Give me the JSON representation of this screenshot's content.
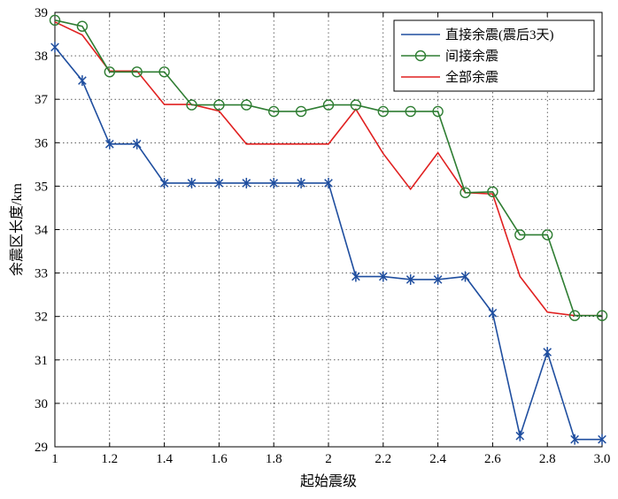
{
  "chart_data": {
    "type": "line",
    "title": "",
    "xlabel": "起始震级",
    "ylabel": "余震区长度/km",
    "xlim": [
      1,
      3.0
    ],
    "ylim": [
      29,
      39
    ],
    "grid": true,
    "legend_position": "top-right",
    "x_tick_labels": [
      "1",
      "1.2",
      "1.4",
      "1.6",
      "1.8",
      "2",
      "2.2",
      "2.4",
      "2.6",
      "2.8",
      "3.0"
    ],
    "y_tick_labels": [
      "29",
      "30",
      "31",
      "32",
      "33",
      "34",
      "35",
      "36",
      "37",
      "38",
      "39"
    ],
    "series": [
      {
        "name": "直接余震(震后3天)",
        "color": "#1f4e9f",
        "marker": "asterisk",
        "x": [
          1.0,
          1.1,
          1.2,
          1.3,
          1.4,
          1.5,
          1.6,
          1.7,
          1.8,
          1.9,
          2.0,
          2.1,
          2.2,
          2.3,
          2.4,
          2.5,
          2.6,
          2.7,
          2.8,
          2.9,
          3.0
        ],
        "values": [
          38.2,
          37.43,
          35.97,
          35.97,
          35.07,
          35.07,
          35.07,
          35.07,
          35.07,
          35.07,
          35.07,
          32.92,
          32.92,
          32.85,
          32.85,
          32.92,
          32.08,
          29.25,
          31.18,
          29.17,
          29.17
        ]
      },
      {
        "name": "间接余震",
        "color": "#2e7d32",
        "marker": "circle",
        "x": [
          1.0,
          1.1,
          1.2,
          1.3,
          1.4,
          1.5,
          1.6,
          1.7,
          1.8,
          1.9,
          2.0,
          2.1,
          2.2,
          2.3,
          2.4,
          2.5,
          2.6,
          2.7,
          2.8,
          2.9,
          3.0
        ],
        "values": [
          38.82,
          38.68,
          37.63,
          37.63,
          37.63,
          36.87,
          36.87,
          36.87,
          36.72,
          36.72,
          36.87,
          36.87,
          36.72,
          36.72,
          36.72,
          34.85,
          34.87,
          33.88,
          33.88,
          32.02,
          32.02
        ]
      },
      {
        "name": "全部余震",
        "color": "#e02020",
        "marker": "none",
        "x": [
          1.0,
          1.1,
          1.2,
          1.3,
          1.4,
          1.5,
          1.6,
          1.7,
          1.8,
          1.9,
          2.0,
          2.1,
          2.2,
          2.3,
          2.4,
          2.5,
          2.6,
          2.7,
          2.8,
          2.9,
          3.0
        ],
        "values": [
          38.78,
          38.48,
          37.65,
          37.65,
          36.88,
          36.88,
          36.73,
          35.97,
          35.97,
          35.97,
          35.97,
          36.77,
          35.75,
          34.93,
          35.77,
          34.85,
          34.82,
          32.92,
          32.1,
          32.02,
          32.02
        ]
      }
    ]
  }
}
